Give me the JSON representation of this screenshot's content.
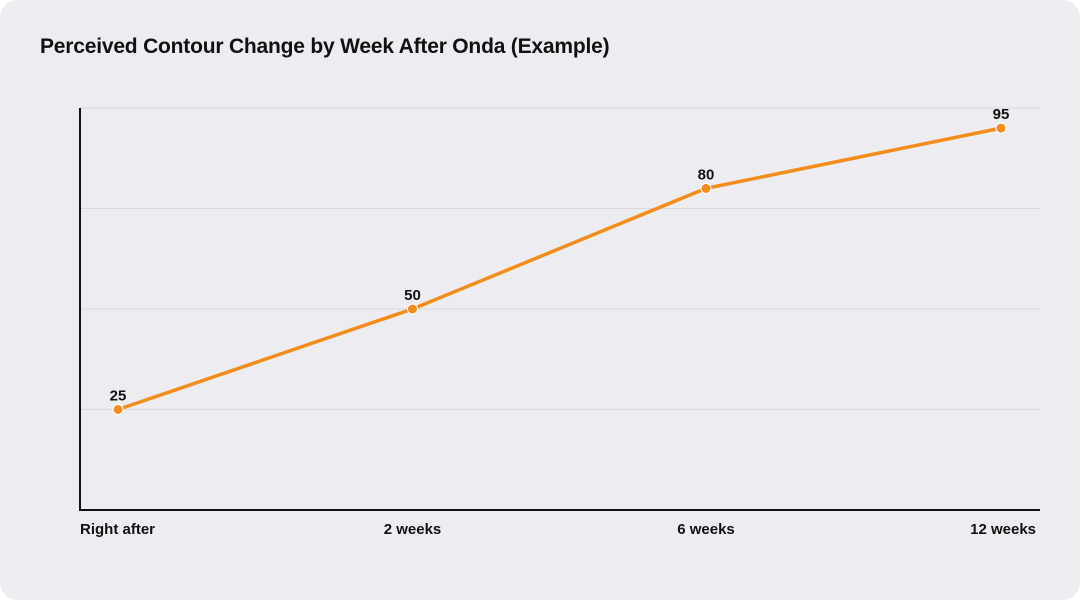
{
  "title": "Perceived Contour Change by Week After Onda (Example)",
  "colors": {
    "background": "#ececf1",
    "line": "#f28c1a",
    "grid": "#d8d8de",
    "axis": "#111111",
    "text": "#111111"
  },
  "chart_data": {
    "type": "line",
    "title": "Perceived Contour Change by Week After Onda (Example)",
    "categories": [
      "Right after",
      "2 weeks",
      "6 weeks",
      "12 weeks"
    ],
    "x": [
      0,
      2,
      6,
      12
    ],
    "values": [
      25,
      50,
      80,
      95
    ],
    "xlabel": "",
    "ylabel": "",
    "ylim": [
      0,
      100
    ],
    "y_ticks_visible": false,
    "grid": true,
    "legend": "none",
    "data_labels": true
  }
}
